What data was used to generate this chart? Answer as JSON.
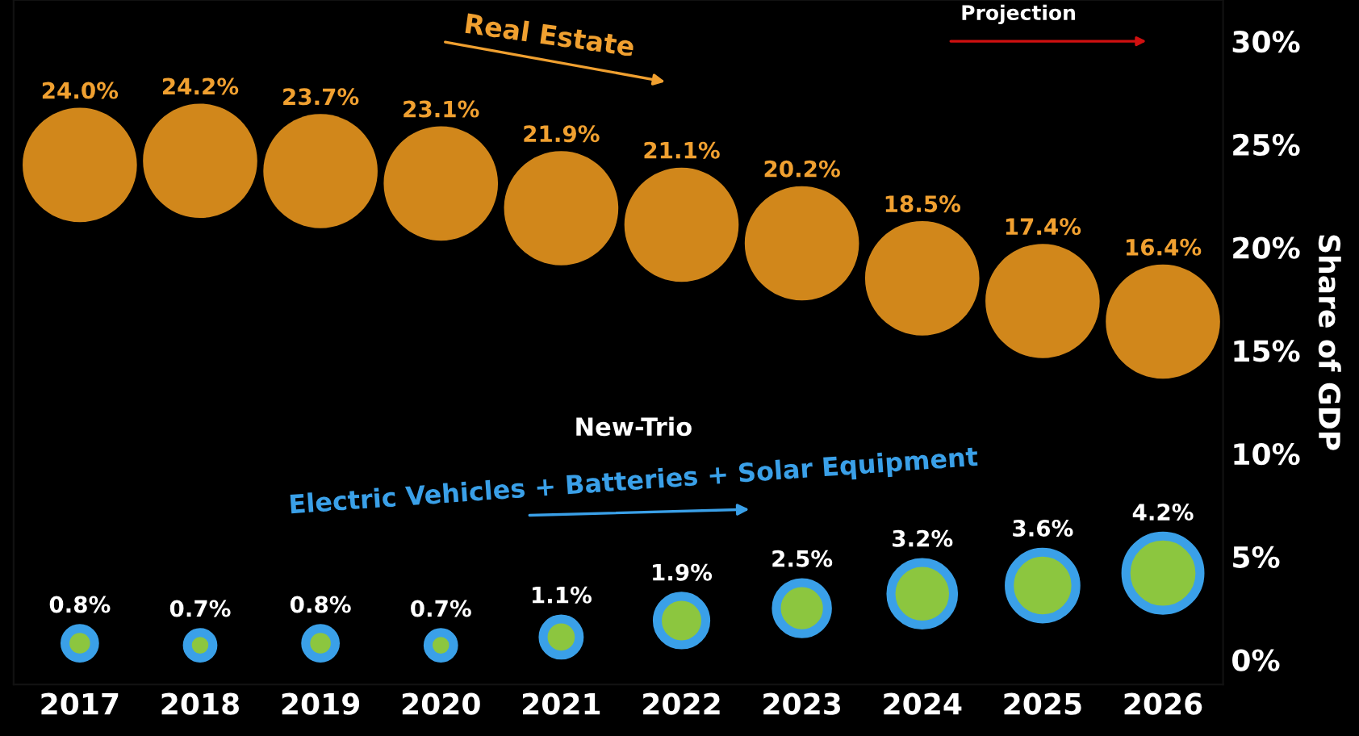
{
  "chart_data": {
    "type": "bubble",
    "categories": [
      "2017",
      "2018",
      "2019",
      "2020",
      "2021",
      "2022",
      "2023",
      "2024",
      "2025",
      "2026"
    ],
    "series": [
      {
        "name": "Real Estate",
        "color": "#e8961e",
        "values": [
          24.0,
          24.2,
          23.7,
          23.1,
          21.9,
          21.1,
          20.2,
          18.5,
          17.4,
          16.4
        ],
        "sizes": [
          1,
          1,
          1,
          1,
          1,
          1,
          1,
          1,
          1,
          1
        ],
        "value_labels": [
          "24.0%",
          "24.2%",
          "23.7%",
          "23.1%",
          "21.9%",
          "21.1%",
          "20.2%",
          "18.5%",
          "17.4%",
          "16.4%"
        ]
      },
      {
        "name": "Electric Vehicles + Batteries + Solar Equipment",
        "color": "#8cc63f",
        "values": [
          0.8,
          0.7,
          0.8,
          0.7,
          1.1,
          1.9,
          2.5,
          3.2,
          3.6,
          4.2
        ],
        "sizes": [
          0.067,
          0.05,
          0.067,
          0.05,
          0.1,
          0.18,
          0.2,
          0.3,
          0.34,
          0.42
        ],
        "value_labels": [
          "0.8%",
          "0.7%",
          "0.8%",
          "0.7%",
          "1.1%",
          "1.9%",
          "2.5%",
          "3.2%",
          "3.6%",
          "4.2%"
        ]
      }
    ],
    "ylabel": "Share of GDP",
    "ylim": [
      -1.2,
      32
    ],
    "yticks": [
      {
        "value": 0,
        "label": "0%"
      },
      {
        "value": 5,
        "label": "5%"
      },
      {
        "value": 10,
        "label": "10%"
      },
      {
        "value": 15,
        "label": "15%"
      },
      {
        "value": 20,
        "label": "20%"
      },
      {
        "value": 25,
        "label": "25%"
      },
      {
        "value": 30,
        "label": "30%"
      }
    ],
    "annotations": [
      "New-Trio",
      "Projection"
    ],
    "grid": false,
    "legend": false
  }
}
